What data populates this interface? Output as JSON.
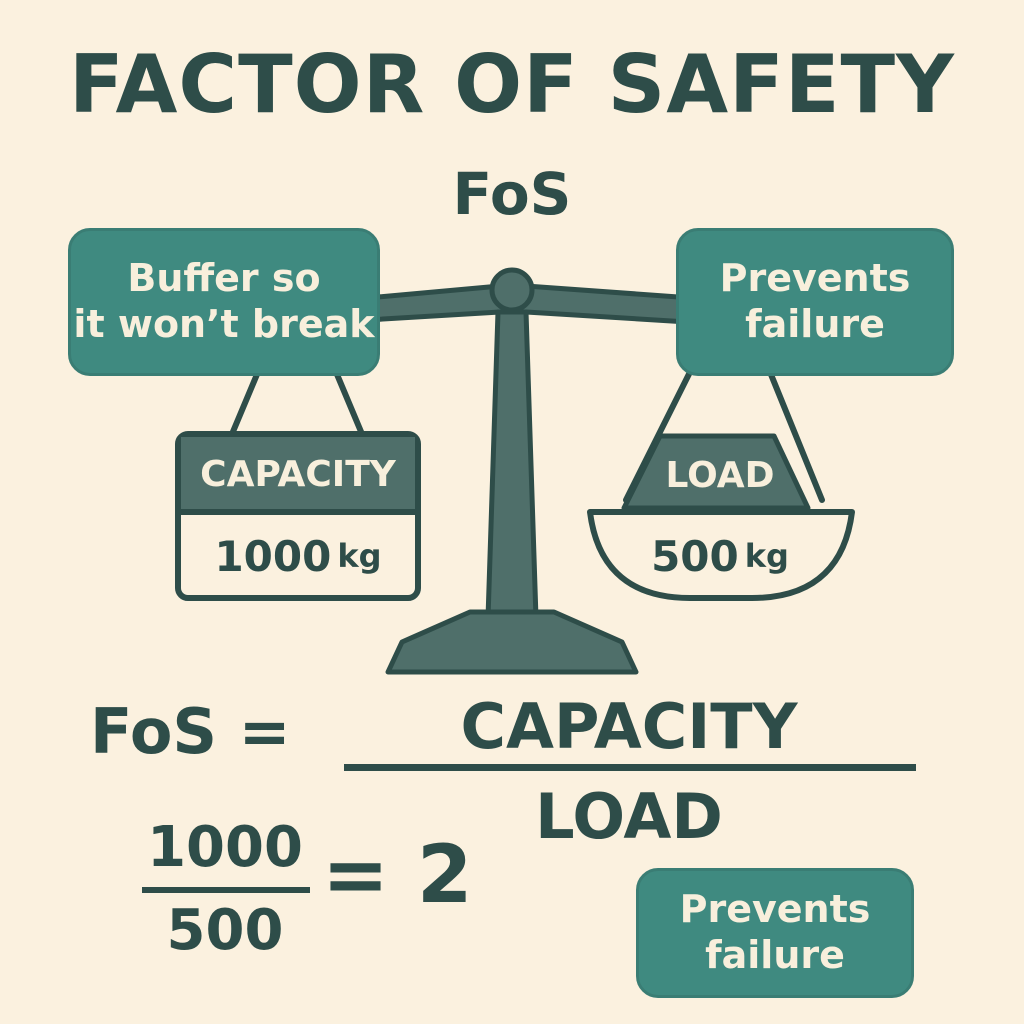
{
  "title": "FACTOR OF SAFETY",
  "subtitle": "FoS",
  "left_bubble": {
    "line1": "Buffer so",
    "line2": "it won’t break"
  },
  "right_bubble": {
    "line1": "Prevents",
    "line2": "failure"
  },
  "capacity": {
    "label": "CAPACITY",
    "value": "1000",
    "unit": "kg"
  },
  "load": {
    "label": "LOAD",
    "value": "500",
    "unit": "kg"
  },
  "formula": {
    "lhs": "FoS =",
    "numerator": "CAPACITY",
    "denominator": "LOAD"
  },
  "calculation": {
    "numerator": "1000",
    "denominator": "500",
    "result": "= 2"
  },
  "bottom_bubble": {
    "line1": "Prevents",
    "line2": "failure"
  },
  "colors": {
    "background": "#fbf1df",
    "dark": "#2e4d49",
    "teal": "#3f8a80",
    "scale": "#4f6f6a",
    "cream_text": "#f8efdc"
  }
}
